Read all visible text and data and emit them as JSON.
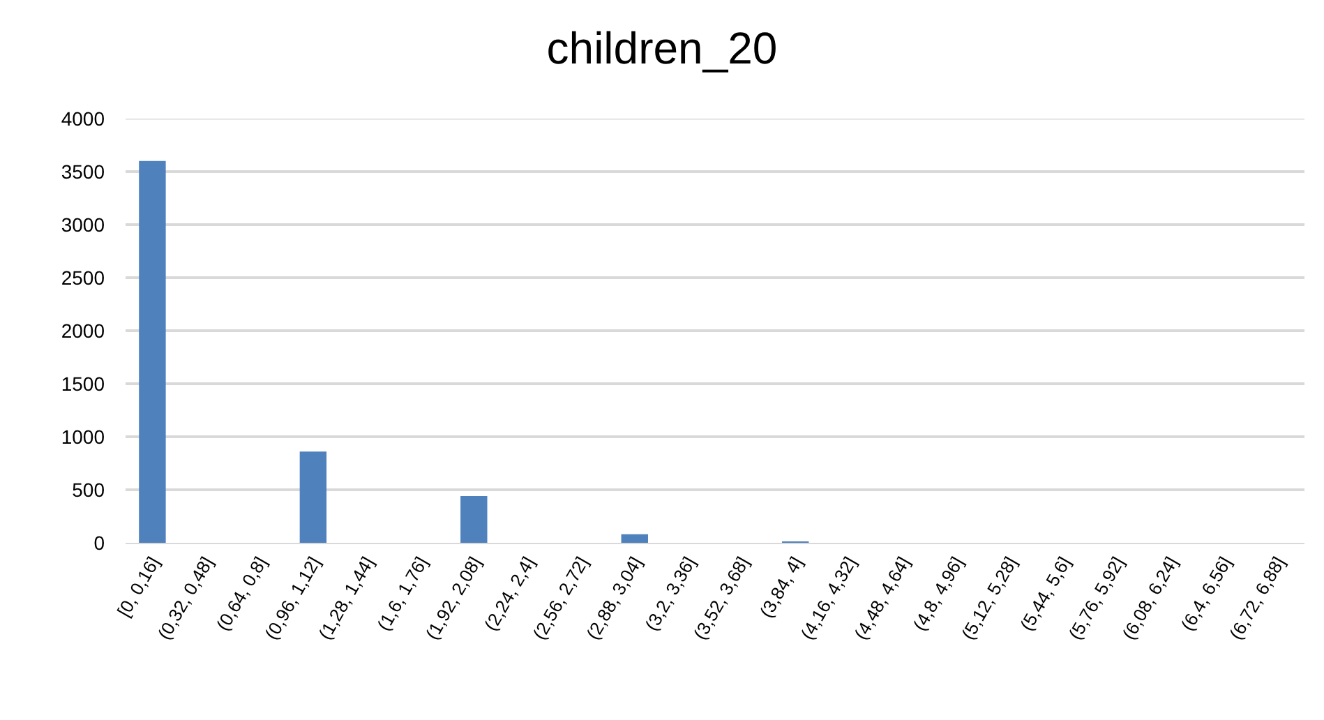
{
  "chart_data": {
    "type": "bar",
    "title": "children_20",
    "categories": [
      "[0, 0,16]",
      "(0,32, 0,48]",
      "(0,64, 0,8]",
      "(0,96, 1,12]",
      "(1,28, 1,44]",
      "(1,6, 1,76]",
      "(1,92, 2,08]",
      "(2,24, 2,4]",
      "(2,56, 2,72]",
      "(2,88, 3,04]",
      "(3,2, 3,36]",
      "(3,52, 3,68]",
      "(3,84, 4]",
      "(4,16, 4,32]",
      "(4,48, 4,64]",
      "(4,8, 4,96]",
      "(5,12, 5,28]",
      "(5,44, 5,6]",
      "(5,76, 5,92]",
      "(6,08, 6,24]",
      "(6,4, 6,56]",
      "(6,72, 6,88]"
    ],
    "values": [
      3600,
      0,
      0,
      860,
      0,
      0,
      440,
      0,
      0,
      80,
      0,
      0,
      10,
      0,
      0,
      0,
      0,
      0,
      0,
      0,
      0,
      0
    ],
    "color": "#4f81bd",
    "ylim": [
      0,
      4000
    ],
    "yticks": [
      0,
      500,
      1000,
      1500,
      2000,
      2500,
      3000,
      3500,
      4000
    ],
    "grid": "y"
  }
}
